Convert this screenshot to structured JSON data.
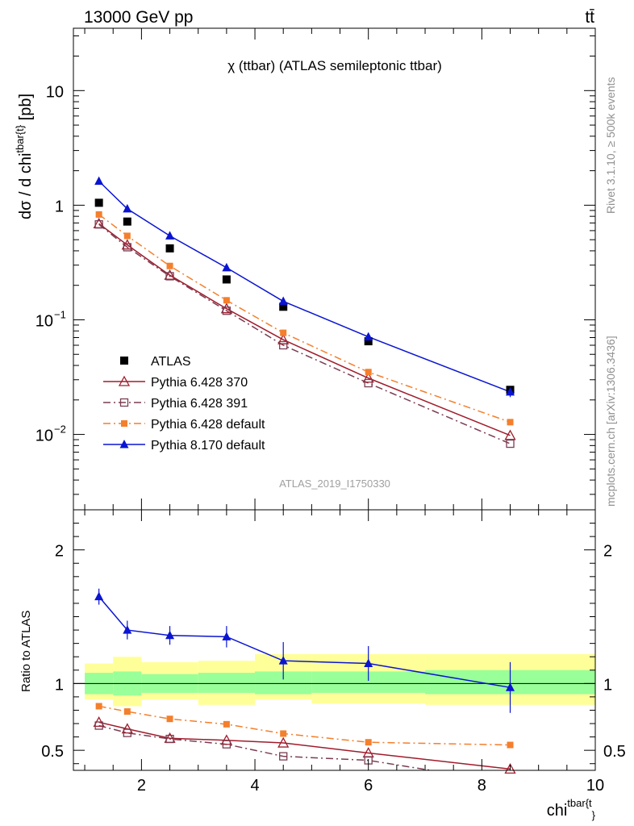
{
  "header": {
    "energy_label": "13000 GeV pp",
    "process_label": "tt̄",
    "plot_title": "χ (ttbar) (ATLAS semileptonic ttbar)",
    "analysis_id": "ATLAS_2019_I1750330",
    "side_rivet": "Rivet 3.1.10, ≥ 500k events",
    "side_mcplots": "mcplots.cern.ch [arXiv:1306.3436]"
  },
  "chart_data": [
    {
      "type": "scatter",
      "panel": "main",
      "ylabel": "dσ / d chi^{tbar{t}} [pb]",
      "yscale": "log",
      "ylim": [
        0.0022,
        35
      ],
      "xlim": [
        0.8,
        10
      ],
      "yticks": [
        {
          "value": 0.01,
          "base": "10",
          "exp": "−2"
        },
        {
          "value": 0.1,
          "base": "10",
          "exp": "−1"
        },
        {
          "value": 1,
          "base": "1",
          "exp": ""
        },
        {
          "value": 10,
          "base": "10",
          "exp": ""
        }
      ],
      "legend_position": "lower-left",
      "series": [
        {
          "name": "ATLAS",
          "color": "#000000",
          "marker": "square-filled",
          "line": "none",
          "x": [
            1.25,
            1.75,
            2.5,
            3.5,
            4.5,
            6.0,
            8.5
          ],
          "y": [
            1.05,
            0.72,
            0.42,
            0.225,
            0.13,
            0.065,
            0.0245
          ]
        },
        {
          "name": "Pythia 6.428 370",
          "color": "#a01c2c",
          "marker": "triangle-open",
          "line": "solid",
          "x": [
            1.25,
            1.75,
            2.5,
            3.5,
            4.5,
            6.0,
            8.5
          ],
          "y": [
            0.69,
            0.45,
            0.245,
            0.125,
            0.067,
            0.031,
            0.0098
          ]
        },
        {
          "name": "Pythia 6.428 391",
          "color": "#7a3d52",
          "marker": "square-open",
          "line": "dashdot",
          "x": [
            1.25,
            1.75,
            2.5,
            3.5,
            4.5,
            6.0,
            8.5
          ],
          "y": [
            0.68,
            0.43,
            0.24,
            0.12,
            0.06,
            0.028,
            0.0083
          ]
        },
        {
          "name": "Pythia 6.428 default",
          "color": "#f47f2c",
          "marker": "square-filled-small",
          "line": "dashdot",
          "x": [
            1.25,
            1.75,
            2.5,
            3.5,
            4.5,
            6.0,
            8.5
          ],
          "y": [
            0.83,
            0.54,
            0.295,
            0.148,
            0.077,
            0.035,
            0.0128
          ]
        },
        {
          "name": "Pythia 8.170 default",
          "color": "#0a14d2",
          "marker": "triangle-filled",
          "line": "solid",
          "x": [
            1.25,
            1.75,
            2.5,
            3.5,
            4.5,
            6.0,
            8.5
          ],
          "y": [
            1.62,
            0.93,
            0.54,
            0.285,
            0.145,
            0.071,
            0.0235
          ],
          "err": [
            0.05,
            0.05,
            0.05,
            0.05,
            0.07,
            0.07,
            0.1
          ]
        }
      ]
    },
    {
      "type": "scatter",
      "panel": "ratio",
      "xlabel": "chi^{tbar{t}}",
      "ylabel": "Ratio to ATLAS",
      "xlim": [
        0.8,
        10
      ],
      "ylim": [
        0.35,
        2.3
      ],
      "xticks": [
        2,
        4,
        6,
        8,
        10
      ],
      "yticks": [
        0.5,
        1,
        2
      ],
      "bands": {
        "bins": [
          1.0,
          1.5,
          2.0,
          3.0,
          4.0,
          5.0,
          7.0,
          10.0
        ],
        "inner_lo": [
          0.92,
          0.91,
          0.93,
          0.93,
          0.92,
          0.93,
          0.92
        ],
        "inner_hi": [
          1.08,
          1.09,
          1.07,
          1.08,
          1.09,
          1.09,
          1.1
        ],
        "outer_lo": [
          0.88,
          0.83,
          0.88,
          0.84,
          0.88,
          0.85,
          0.84
        ],
        "outer_hi": [
          1.15,
          1.2,
          1.16,
          1.17,
          1.22,
          1.22,
          1.22
        ],
        "inner_color": "#99ff99",
        "outer_color": "#ffff99"
      },
      "series": [
        {
          "name": "Pythia 6.428 370",
          "color": "#a01c2c",
          "marker": "triangle-open",
          "line": "solid",
          "x": [
            1.25,
            1.75,
            2.5,
            3.5,
            4.5,
            6.0,
            8.5
          ],
          "y": [
            0.71,
            0.66,
            0.59,
            0.575,
            0.555,
            0.48,
            0.36
          ]
        },
        {
          "name": "Pythia 6.428 391",
          "color": "#7a3d52",
          "marker": "square-open",
          "line": "dashdot",
          "x": [
            1.25,
            1.75,
            2.5,
            3.5,
            4.5,
            6.0,
            7.1
          ],
          "y": [
            0.685,
            0.63,
            0.585,
            0.545,
            0.455,
            0.425,
            0.35
          ],
          "draw_marker": [
            true,
            true,
            true,
            true,
            true,
            true,
            false
          ]
        },
        {
          "name": "Pythia 6.428 default",
          "color": "#f47f2c",
          "marker": "square-filled-small",
          "line": "dashdot",
          "x": [
            1.25,
            1.75,
            2.5,
            3.5,
            4.5,
            6.0,
            8.5
          ],
          "y": [
            0.83,
            0.79,
            0.735,
            0.695,
            0.625,
            0.56,
            0.54
          ]
        },
        {
          "name": "Pythia 8.170 default",
          "color": "#0a14d2",
          "marker": "triangle-filled",
          "line": "solid",
          "x": [
            1.25,
            1.75,
            2.5,
            3.5,
            4.5,
            6.0,
            8.5
          ],
          "y": [
            1.65,
            1.4,
            1.36,
            1.35,
            1.17,
            1.15,
            0.97
          ],
          "err": [
            0.06,
            0.07,
            0.07,
            0.08,
            0.14,
            0.13,
            0.19
          ]
        }
      ]
    }
  ]
}
